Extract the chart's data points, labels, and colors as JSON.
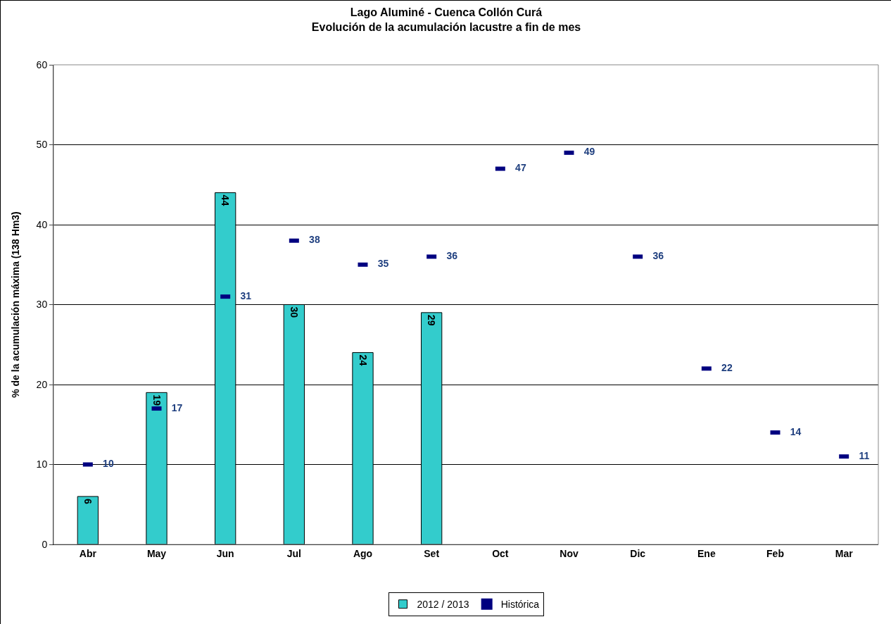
{
  "chart_data": {
    "type": "bar",
    "title": "Lago Aluminé - Cuenca Collón Curá\nEvolución de la acumulación lacustre a fin de mes",
    "ylabel": "% de la acumulación máxima (138 Hm3)",
    "categories": [
      "Abr",
      "May",
      "Jun",
      "Jul",
      "Ago",
      "Set",
      "Oct",
      "Nov",
      "Dic",
      "Ene",
      "Feb",
      "Mar"
    ],
    "series": [
      {
        "name": "2012 / 2013",
        "color": "#33cccc",
        "values": [
          6,
          19,
          44,
          30,
          24,
          29,
          null,
          null,
          null,
          null,
          null,
          null
        ]
      },
      {
        "name": "Histórica",
        "type": "scatter",
        "color": "#000080",
        "values": [
          10,
          17,
          31,
          38,
          35,
          36,
          47,
          49,
          36,
          22,
          14,
          11
        ]
      }
    ],
    "ylim": [
      0,
      60
    ],
    "yticks": [
      0,
      10,
      20,
      30,
      40,
      50,
      60
    ],
    "grid": "y",
    "legend": "bottom",
    "data_labels": true
  }
}
